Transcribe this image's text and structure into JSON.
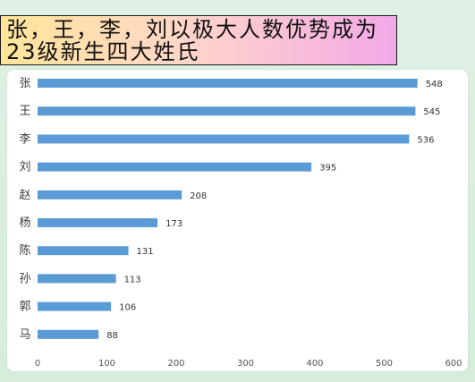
{
  "page": {
    "title": "张，王，李，刘以极大人数优势成为\n23级新生四大姓氏"
  },
  "chart_data": {
    "type": "bar",
    "orientation": "horizontal",
    "categories": [
      "张",
      "王",
      "李",
      "刘",
      "赵",
      "杨",
      "陈",
      "孙",
      "郭",
      "马"
    ],
    "values": [
      548,
      545,
      536,
      395,
      208,
      173,
      131,
      113,
      106,
      88
    ],
    "xlim": [
      0,
      600
    ],
    "xticks": [
      0,
      100,
      200,
      300,
      400,
      500,
      600
    ],
    "grid": false,
    "legend": "none"
  },
  "colors": {
    "bar": "#5b9bd5",
    "background": "#d9ecdf",
    "title_gradient_start": "#ffe59a",
    "title_gradient_end": "#f2a9e8"
  }
}
